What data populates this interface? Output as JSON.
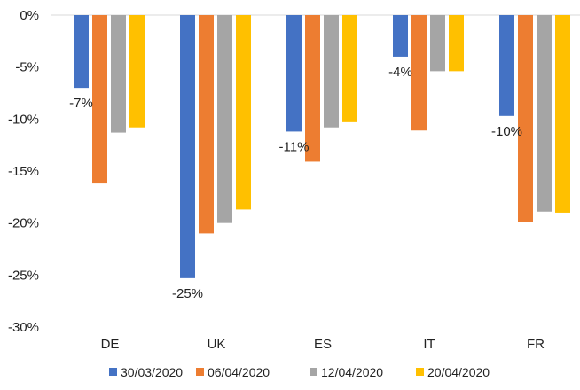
{
  "chart_data": {
    "type": "bar",
    "categories": [
      "DE",
      "UK",
      "ES",
      "IT",
      "FR"
    ],
    "series": [
      {
        "name": "30/03/2020",
        "color": "#4472C4",
        "values": [
          -7,
          -25.3,
          -11.2,
          -4,
          -9.7
        ]
      },
      {
        "name": "06/04/2020",
        "color": "#ED7D31",
        "values": [
          -16.2,
          -21,
          -14.1,
          -11.1,
          -19.9
        ]
      },
      {
        "name": "12/04/2020",
        "color": "#A5A5A5",
        "values": [
          -11.3,
          -20,
          -10.8,
          -5.4,
          -18.9
        ]
      },
      {
        "name": "20/04/2020",
        "color": "#FFC000",
        "values": [
          -10.8,
          -18.7,
          -10.3,
          -5.4,
          -19
        ]
      }
    ],
    "y_ticks": [
      "0%",
      "-5%",
      "-10%",
      "-15%",
      "-20%",
      "-25%",
      "-30%"
    ],
    "y_tick_values": [
      0,
      -5,
      -10,
      -15,
      -20,
      -25,
      -30
    ],
    "ylim": [
      -30,
      0
    ],
    "data_labels": [
      {
        "series": 0,
        "category": 0,
        "text": "-7%"
      },
      {
        "series": 0,
        "category": 1,
        "text": "-25%"
      },
      {
        "series": 0,
        "category": 2,
        "text": "-11%"
      },
      {
        "series": 0,
        "category": 3,
        "text": "-4%"
      },
      {
        "series": 0,
        "category": 4,
        "text": "-10%"
      }
    ],
    "grid": false,
    "legend_position": "bottom",
    "title": "",
    "xlabel": "",
    "ylabel": ""
  }
}
